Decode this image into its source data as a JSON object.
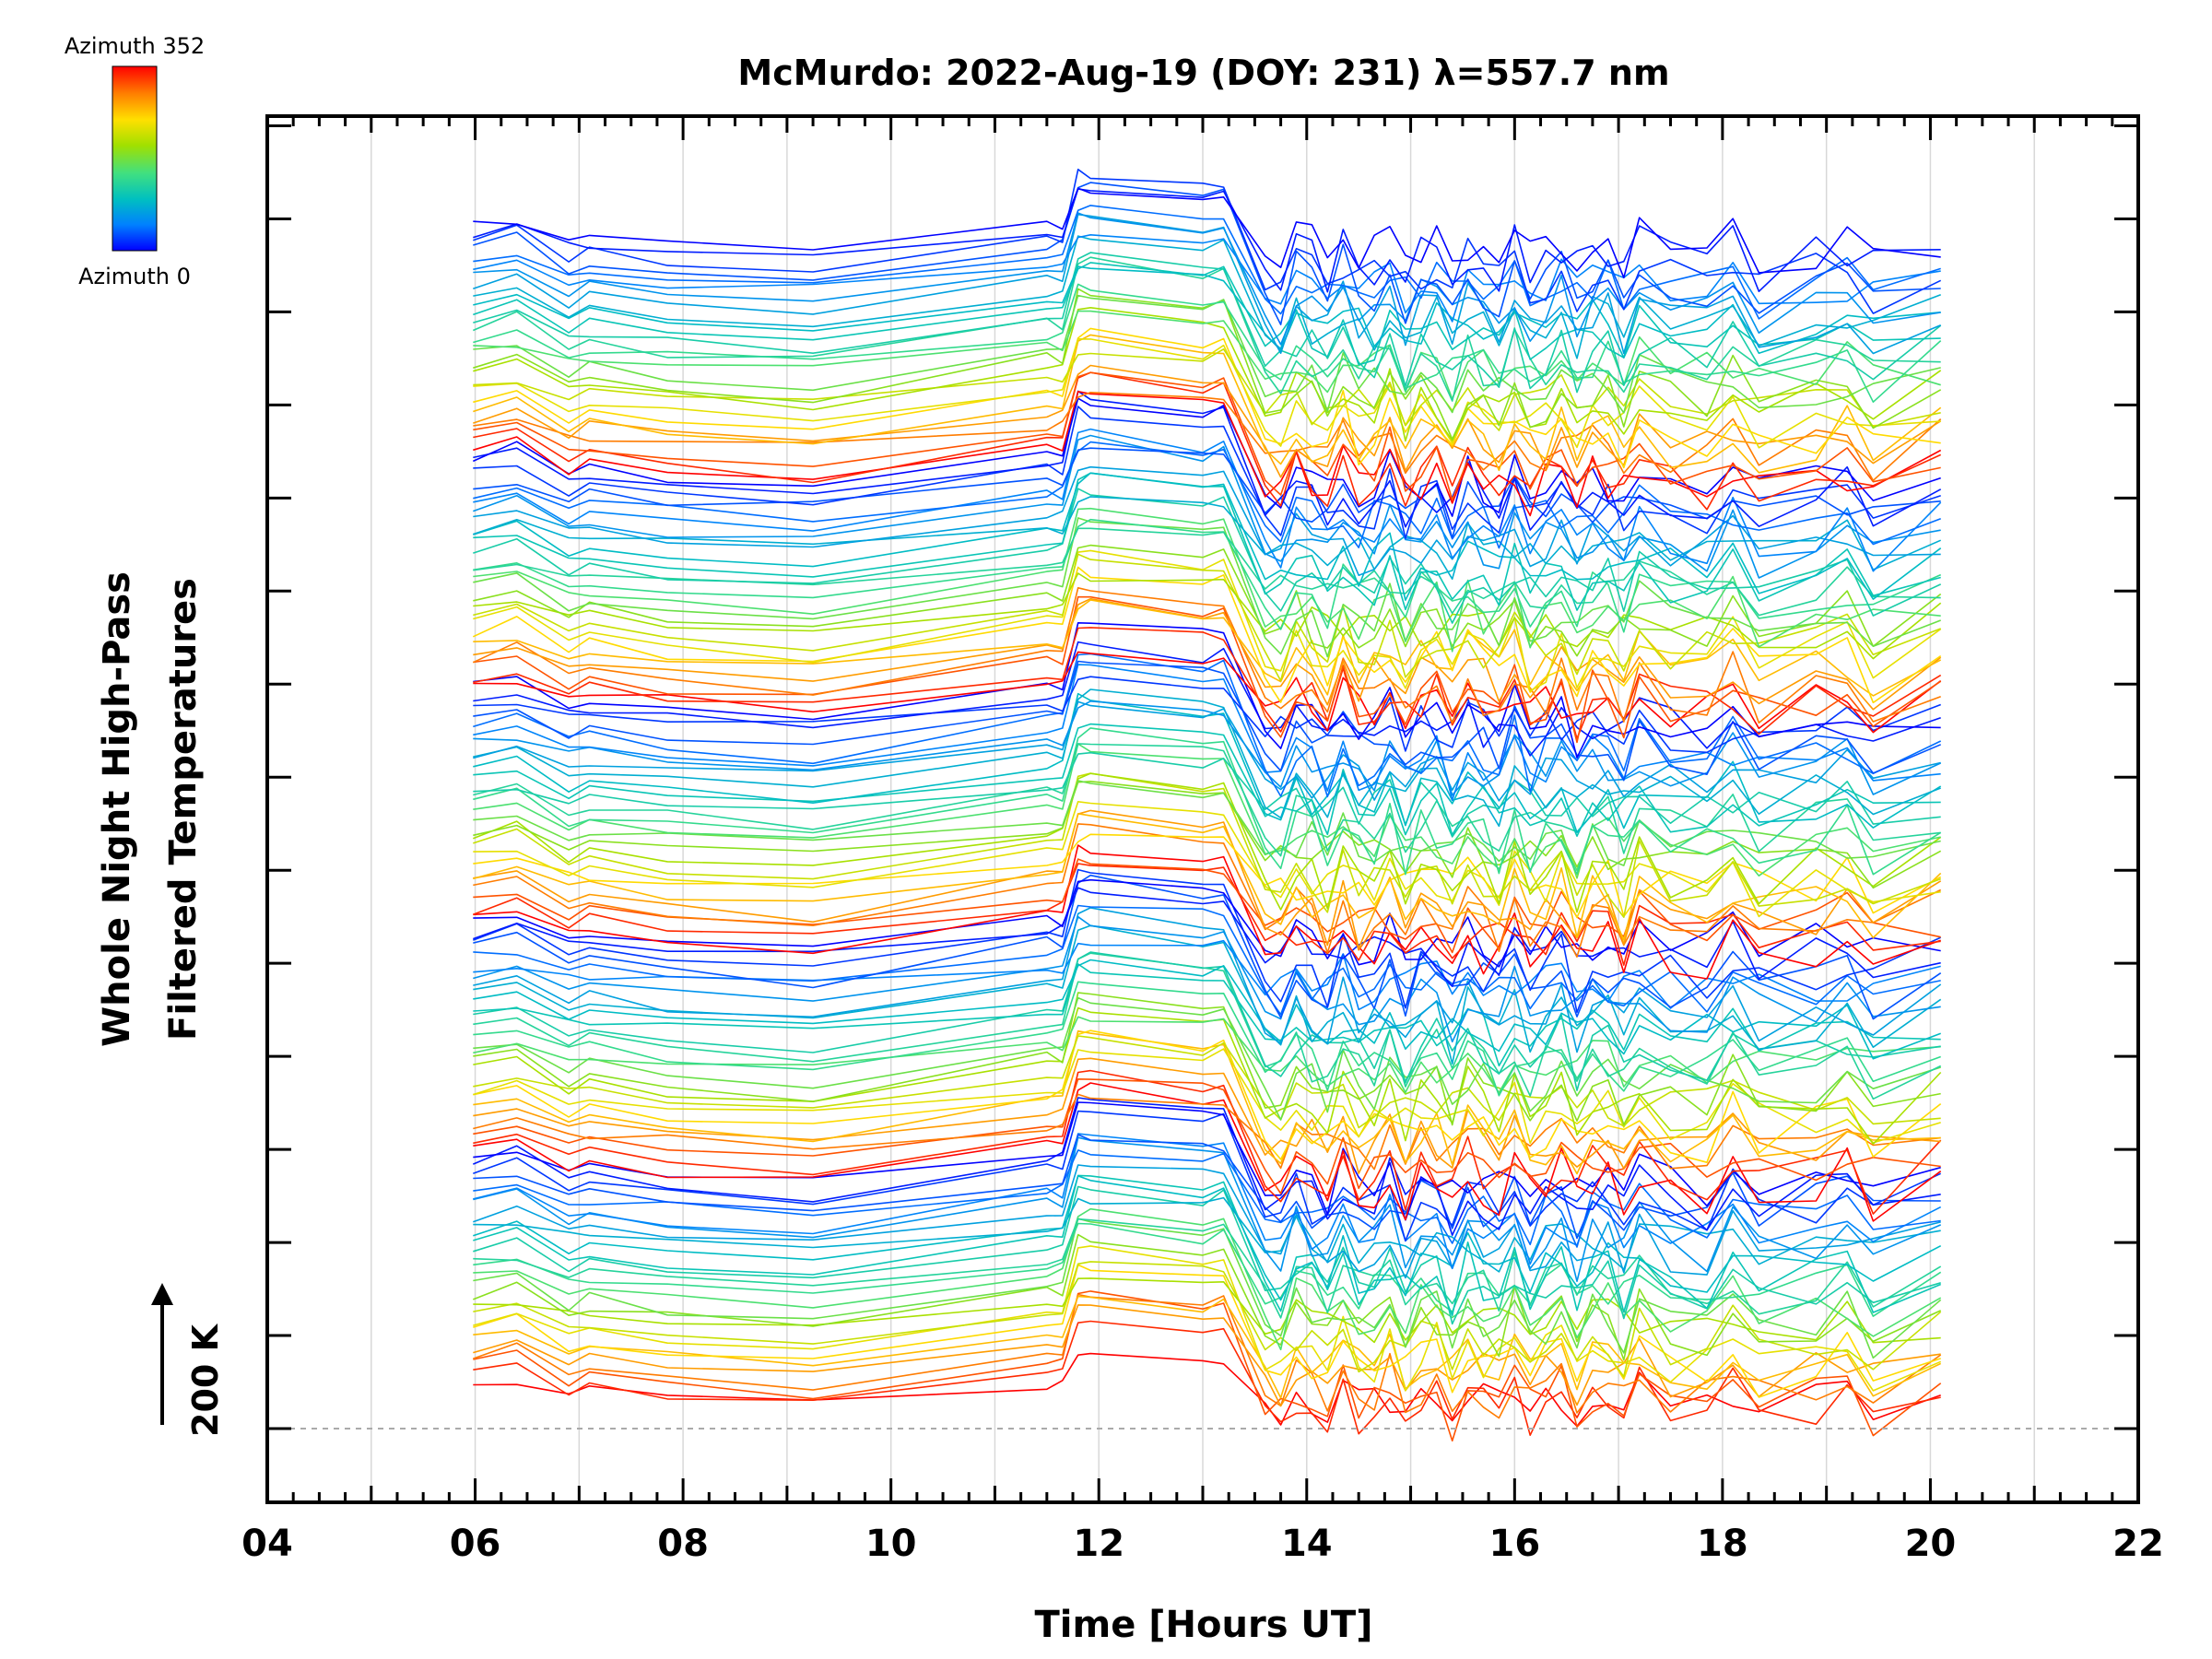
{
  "chart_data": {
    "type": "line",
    "title": "McMurdo: 2022-Aug-19 (DOY: 231) λ=557.7 nm",
    "xlabel": "Time [Hours UT]",
    "ylabel_line1": "Whole Night High-Pass",
    "ylabel_line2": "Filtered Temperatures",
    "xlim": [
      4,
      22
    ],
    "x_ticks": [
      "04",
      "06",
      "08",
      "10",
      "12",
      "14",
      "16",
      "18",
      "20",
      "22"
    ],
    "x_tick_values": [
      4,
      6,
      8,
      10,
      12,
      14,
      16,
      18,
      20,
      22
    ],
    "gridlines_x": [
      5,
      6,
      7,
      8,
      9,
      10,
      11,
      12,
      13,
      14,
      15,
      16,
      17,
      18,
      19,
      20,
      21
    ],
    "y_major_ticks": 15,
    "scale_bar_label": "200 K",
    "colorbar": {
      "top_label": "Azimuth 352",
      "bottom_label": "Azimuth 0",
      "colormap": [
        "#0000ff",
        "#0080ff",
        "#00c0c0",
        "#40e080",
        "#a0e000",
        "#ffe000",
        "#ff8000",
        "#ff0000"
      ]
    },
    "time_samples": [
      5.98,
      6.4,
      6.9,
      7.1,
      7.85,
      9.25,
      11.5,
      11.65,
      11.8,
      11.92,
      13.0,
      13.2,
      13.6,
      13.75,
      13.9,
      14.05,
      14.2,
      14.35,
      14.5,
      14.65,
      14.8,
      14.95,
      15.1,
      15.25,
      15.4,
      15.55,
      15.7,
      15.85,
      16.0,
      16.15,
      16.3,
      16.45,
      16.6,
      16.75,
      16.9,
      17.05,
      17.2,
      17.5,
      17.85,
      18.1,
      18.35,
      18.9,
      19.2,
      19.45,
      20.1
    ],
    "n_stacks": 5,
    "stack_spacing_ticks": 2.5,
    "lines_per_stack": 27,
    "stack_top_index": 1.0
  }
}
